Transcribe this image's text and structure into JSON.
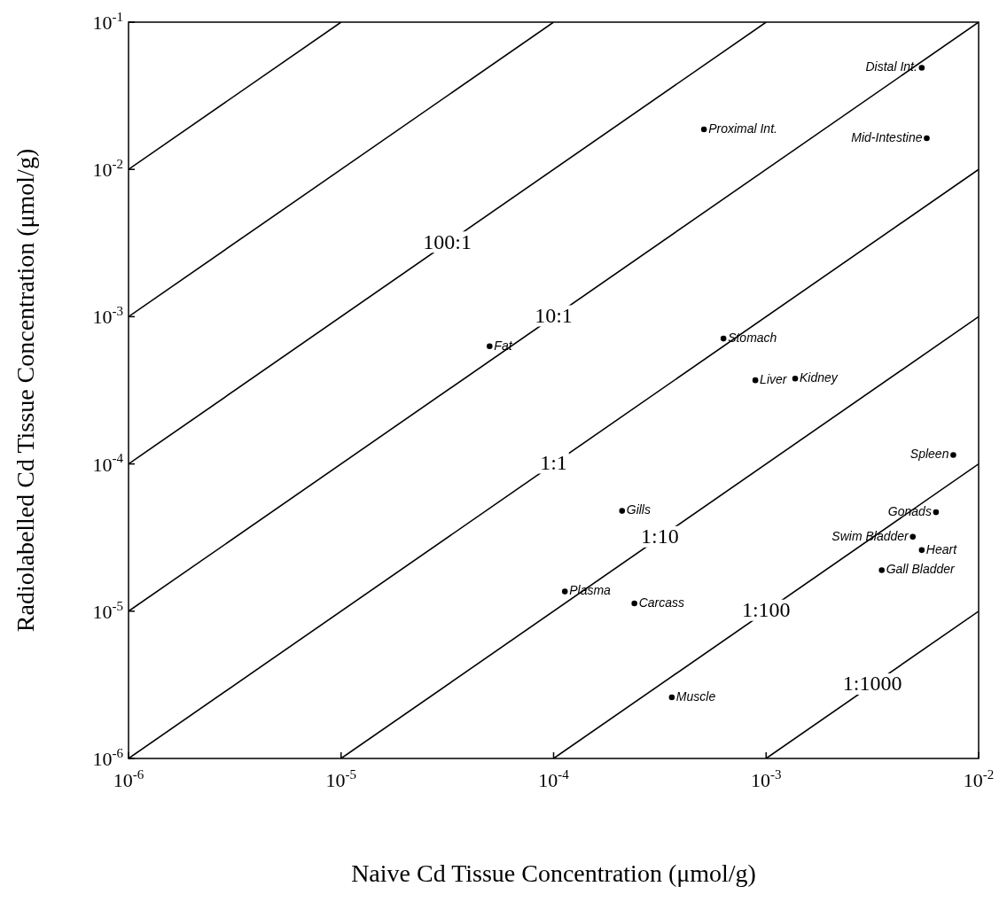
{
  "chart_data": {
    "type": "line",
    "xlabel": "Naive Cd Tissue Concentration (μmol/g)",
    "ylabel": "Radiolabelled Cd Tissue Concentration (μmol/g)",
    "log": "xy",
    "marker": "none",
    "line_style": "solid",
    "legend": false,
    "xlim": [
      1e-06,
      0.01
    ],
    "ylim": [
      1e-06,
      0.1
    ],
    "xticks": [
      {
        "value": 1e-06,
        "label": "10$^{-6}$"
      },
      {
        "value": 1e-05,
        "label": "10$^{-5}$"
      },
      {
        "value": 0.0001,
        "label": "10$^{-4}$"
      },
      {
        "value": 0.001,
        "label": "10$^{-3}$"
      },
      {
        "value": 0.01,
        "label": "10$^{-2}$"
      }
    ],
    "yticks": [
      {
        "value": 1e-06,
        "label": "10$^{-6}$"
      },
      {
        "value": 1e-05,
        "label": "10$^{-5}$"
      },
      {
        "value": 0.0001,
        "label": "10$^{-4}$"
      },
      {
        "value": 0.001,
        "label": "10$^{-3}$"
      },
      {
        "value": 0.01,
        "label": "10$^{-2}$"
      },
      {
        "value": 0.1,
        "label": "10$^{-1}$"
      }
    ],
    "series": [
      {
        "color": "#000000",
        "x": [
          1e-06,
          1e-05
        ],
        "values": [
          0.01,
          0.1
        ]
      },
      {
        "color": "#000000",
        "x": [
          1e-06,
          0.0001
        ],
        "values": [
          0.001,
          0.1
        ]
      },
      {
        "name": "100:1",
        "color": "#000000",
        "x": [
          1e-06,
          0.001
        ],
        "values": [
          0.0001,
          0.1
        ]
      },
      {
        "name": "10:1",
        "color": "#000000",
        "x": [
          1e-06,
          0.01
        ],
        "values": [
          1e-05,
          0.1
        ]
      },
      {
        "name": "1:1",
        "color": "#000000",
        "x": [
          1e-06,
          0.01
        ],
        "values": [
          1e-06,
          0.01
        ]
      },
      {
        "name": "1:10",
        "color": "#000000",
        "x": [
          1e-05,
          0.01
        ],
        "values": [
          1e-06,
          0.001
        ]
      },
      {
        "name": "1:100",
        "color": "#000000",
        "x": [
          0.0001,
          0.01
        ],
        "values": [
          1e-06,
          0.0001
        ]
      },
      {
        "name": "1:1000",
        "color": "#000000",
        "x": [
          0.001,
          0.01
        ],
        "values": [
          1e-06,
          1e-05
        ]
      },
      {
        "type": "scatter",
        "marker": "circle",
        "name": "Distal Int.",
        "color": "#000000",
        "x": [
          0.0054
        ],
        "values": [
          0.049
        ]
      },
      {
        "type": "scatter",
        "marker": "circle",
        "name": "Proximal Int.",
        "color": "#000000",
        "x": [
          0.00051
        ],
        "values": [
          0.0187
        ]
      },
      {
        "type": "scatter",
        "marker": "circle",
        "name": "Mid-Intestine",
        "color": "#000000",
        "x": [
          0.0057
        ],
        "values": [
          0.0163
        ]
      },
      {
        "type": "scatter",
        "marker": "circle",
        "name": "Fat",
        "color": "#000000",
        "x": [
          5e-05
        ],
        "values": [
          0.00063
        ]
      },
      {
        "type": "scatter",
        "marker": "circle",
        "name": "Stomach",
        "color": "#000000",
        "x": [
          0.00063
        ],
        "values": [
          0.00071
        ]
      },
      {
        "type": "scatter",
        "marker": "circle",
        "name": "Liver",
        "color": "#000000",
        "x": [
          0.00089
        ],
        "values": [
          0.00037
        ]
      },
      {
        "type": "scatter",
        "marker": "circle",
        "name": "Kidney",
        "color": "#000000",
        "x": [
          0.00137
        ],
        "values": [
          0.00038
        ]
      },
      {
        "type": "scatter",
        "marker": "circle",
        "name": "Spleen",
        "color": "#000000",
        "x": [
          0.0076
        ],
        "values": [
          0.000115
        ]
      },
      {
        "type": "scatter",
        "marker": "circle",
        "name": "Gills",
        "color": "#000000",
        "x": [
          0.00021
        ],
        "values": [
          4.8e-05
        ]
      },
      {
        "type": "scatter",
        "marker": "circle",
        "name": "Gonads",
        "color": "#000000",
        "x": [
          0.0063
        ],
        "values": [
          4.7e-05
        ]
      },
      {
        "type": "scatter",
        "marker": "circle",
        "name": "Swim Bladder",
        "color": "#000000",
        "x": [
          0.0049
        ],
        "values": [
          3.2e-05
        ]
      },
      {
        "type": "scatter",
        "marker": "circle",
        "name": "Heart",
        "color": "#000000",
        "x": [
          0.0054
        ],
        "values": [
          2.6e-05
        ]
      },
      {
        "type": "scatter",
        "marker": "circle",
        "name": "Gall Bladder",
        "color": "#000000",
        "x": [
          0.0035
        ],
        "values": [
          1.9e-05
        ]
      },
      {
        "type": "scatter",
        "marker": "circle",
        "name": "Plasma",
        "color": "#000000",
        "x": [
          0.000113
        ],
        "values": [
          1.36e-05
        ]
      },
      {
        "type": "scatter",
        "marker": "circle",
        "name": "Carcass",
        "color": "#000000",
        "x": [
          0.00024
        ],
        "values": [
          1.13e-05
        ]
      },
      {
        "type": "scatter",
        "marker": "circle",
        "name": "Muscle",
        "color": "#000000",
        "x": [
          0.00036
        ],
        "values": [
          2.6e-06
        ]
      }
    ]
  }
}
